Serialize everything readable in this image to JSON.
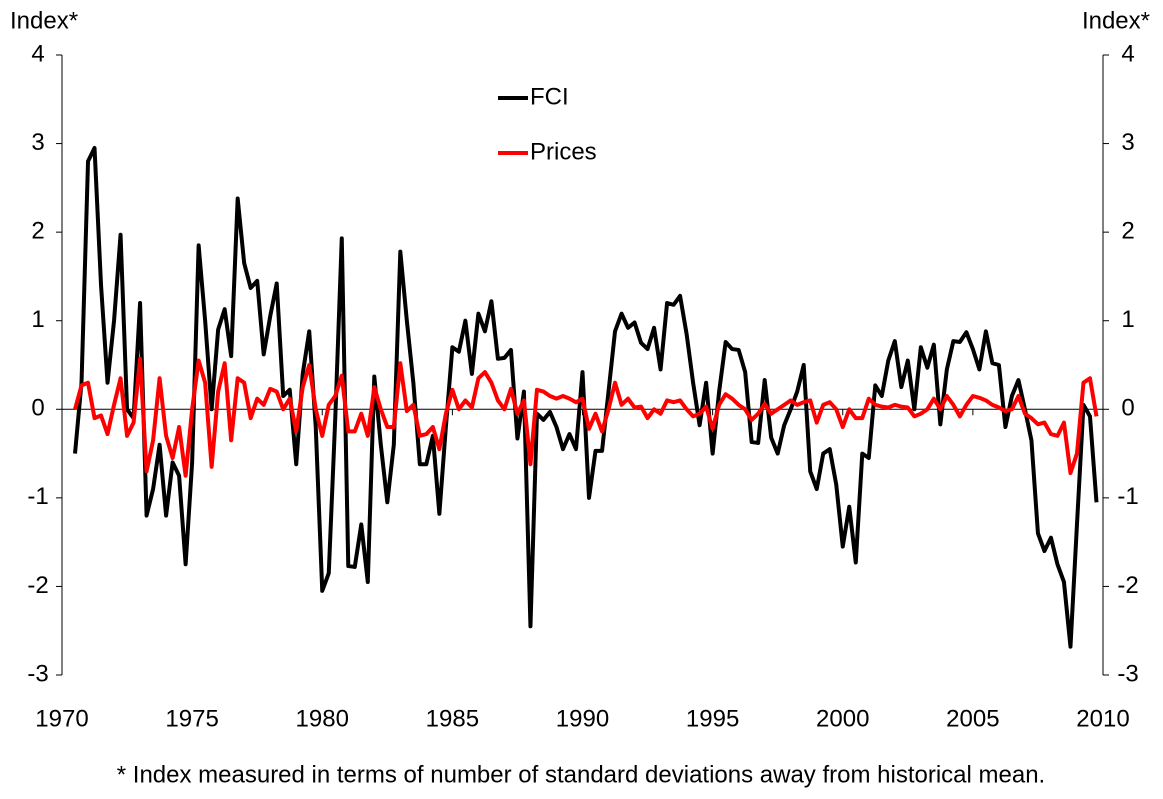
{
  "chart_data": {
    "type": "line",
    "ylabel": "Index*",
    "y2label": "Index*",
    "note": "* Index measured in terms of number of standard deviations away from historical mean.",
    "xlim": [
      1970,
      2010
    ],
    "xticks": [
      1970,
      1975,
      1980,
      1985,
      1990,
      1995,
      2000,
      2005,
      2010
    ],
    "ylim": [
      -3,
      4
    ],
    "yticks": [
      -3,
      -2,
      -1,
      0,
      1,
      2,
      3,
      4
    ],
    "y2lim": [
      -3,
      4
    ],
    "y2ticks": [
      -3,
      -2,
      -1,
      0,
      1,
      2,
      3,
      4
    ],
    "x": [
      1970.5,
      1970.75,
      1971,
      1971.25,
      1971.5,
      1971.75,
      1972,
      1972.25,
      1972.5,
      1972.75,
      1973,
      1973.25,
      1973.5,
      1973.75,
      1974,
      1974.25,
      1974.5,
      1974.75,
      1975,
      1975.25,
      1975.5,
      1975.75,
      1976,
      1976.25,
      1976.5,
      1976.75,
      1977,
      1977.25,
      1977.5,
      1977.75,
      1978,
      1978.25,
      1978.5,
      1978.75,
      1979,
      1979.25,
      1979.5,
      1979.75,
      1980,
      1980.25,
      1980.5,
      1980.75,
      1981,
      1981.25,
      1981.5,
      1981.75,
      1982,
      1982.25,
      1982.5,
      1982.75,
      1983,
      1983.25,
      1983.5,
      1983.75,
      1984,
      1984.25,
      1984.5,
      1984.75,
      1985,
      1985.25,
      1985.5,
      1985.75,
      1986,
      1986.25,
      1986.5,
      1986.75,
      1987,
      1987.25,
      1987.5,
      1987.75,
      1988,
      1988.25,
      1988.5,
      1988.75,
      1989,
      1989.25,
      1989.5,
      1989.75,
      1990,
      1990.25,
      1990.5,
      1990.75,
      1991,
      1991.25,
      1991.5,
      1991.75,
      1992,
      1992.25,
      1992.5,
      1992.75,
      1993,
      1993.25,
      1993.5,
      1993.75,
      1994,
      1994.25,
      1994.5,
      1994.75,
      1995,
      1995.25,
      1995.5,
      1995.75,
      1996,
      1996.25,
      1996.5,
      1996.75,
      1997,
      1997.25,
      1997.5,
      1997.75,
      1998,
      1998.25,
      1998.5,
      1998.75,
      1999,
      1999.25,
      1999.5,
      1999.75,
      2000,
      2000.25,
      2000.5,
      2000.75,
      2001,
      2001.25,
      2001.5,
      2001.75,
      2002,
      2002.25,
      2002.5,
      2002.75,
      2003,
      2003.25,
      2003.5,
      2003.75,
      2004,
      2004.25,
      2004.5,
      2004.75,
      2005,
      2005.25,
      2005.5,
      2005.75,
      2006,
      2006.25,
      2006.5,
      2006.75,
      2007,
      2007.25,
      2007.5,
      2007.75,
      2008,
      2008.25,
      2008.5,
      2008.75,
      2009,
      2009.25,
      2009.5,
      2009.75
    ],
    "series": [
      {
        "name": "FCI",
        "color": "#000000",
        "values": [
          -0.5,
          0.3,
          2.8,
          2.95,
          1.4,
          0.3,
          1.0,
          1.97,
          0.0,
          -0.1,
          1.2,
          -1.2,
          -0.9,
          -0.4,
          -1.2,
          -0.6,
          -0.75,
          -1.75,
          -0.6,
          1.85,
          1.0,
          0.0,
          0.9,
          1.13,
          0.6,
          2.38,
          1.65,
          1.37,
          1.45,
          0.62,
          1.05,
          1.42,
          0.15,
          0.22,
          -0.62,
          0.4,
          0.88,
          -0.2,
          -2.05,
          -1.85,
          -0.1,
          1.93,
          -1.77,
          -1.78,
          -1.3,
          -1.95,
          0.37,
          -0.4,
          -1.05,
          -0.4,
          1.78,
          1.0,
          0.3,
          -0.62,
          -0.62,
          -0.3,
          -1.18,
          -0.2,
          0.7,
          0.65,
          1.0,
          0.4,
          1.08,
          0.88,
          1.22,
          0.57,
          0.58,
          0.67,
          -0.33,
          0.2,
          -2.45,
          -0.05,
          -0.12,
          -0.03,
          -0.2,
          -0.45,
          -0.28,
          -0.45,
          0.42,
          -1.0,
          -0.47,
          -0.47,
          0.2,
          0.88,
          1.08,
          0.92,
          0.98,
          0.75,
          0.68,
          0.92,
          0.45,
          1.2,
          1.18,
          1.28,
          0.85,
          0.3,
          -0.18,
          0.3,
          -0.5,
          0.2,
          0.76,
          0.68,
          0.67,
          0.42,
          -0.37,
          -0.38,
          0.33,
          -0.32,
          -0.5,
          -0.18,
          0.0,
          0.2,
          0.5,
          -0.7,
          -0.9,
          -0.5,
          -0.45,
          -0.85,
          -1.55,
          -1.1,
          -1.73,
          -0.5,
          -0.55,
          0.27,
          0.15,
          0.55,
          0.77,
          0.25,
          0.55,
          0.0,
          0.7,
          0.47,
          0.73,
          -0.17,
          0.45,
          0.77,
          0.76,
          0.87,
          0.68,
          0.45,
          0.88,
          0.52,
          0.5,
          -0.2,
          0.15,
          0.33,
          0.0,
          -0.35,
          -1.4,
          -1.6,
          -1.45,
          -1.75,
          -1.95,
          -2.68,
          -1.3,
          0.05,
          -0.08,
          -1.05
        ]
      },
      {
        "name": "Prices",
        "color": "#ff0000",
        "values": [
          0,
          0.27,
          0.3,
          -0.1,
          -0.07,
          -0.28,
          0.05,
          0.35,
          -0.3,
          -0.15,
          0.57,
          -0.7,
          -0.35,
          0.35,
          -0.3,
          -0.55,
          -0.2,
          -0.75,
          0.0,
          0.55,
          0.3,
          -0.65,
          0.2,
          0.52,
          -0.35,
          0.35,
          0.3,
          -0.1,
          0.12,
          0.05,
          0.23,
          0.2,
          0.0,
          0.12,
          -0.25,
          0.25,
          0.5,
          0.0,
          -0.3,
          0.05,
          0.15,
          0.38,
          -0.25,
          -0.25,
          -0.05,
          -0.3,
          0.25,
          0.0,
          -0.2,
          -0.2,
          0.52,
          -0.02,
          0.05,
          -0.3,
          -0.28,
          -0.2,
          -0.45,
          -0.05,
          0.22,
          0.0,
          0.1,
          0.02,
          0.35,
          0.42,
          0.3,
          0.1,
          0.0,
          0.23,
          -0.05,
          0.1,
          -0.62,
          0.22,
          0.2,
          0.15,
          0.12,
          0.15,
          0.12,
          0.08,
          0.12,
          -0.22,
          -0.05,
          -0.25,
          0.0,
          0.3,
          0.05,
          0.12,
          0.02,
          0.03,
          -0.1,
          0.0,
          -0.05,
          0.1,
          0.08,
          0.1,
          0.0,
          -0.08,
          -0.05,
          0.03,
          -0.22,
          0.05,
          0.17,
          0.12,
          0.05,
          0.0,
          -0.12,
          -0.05,
          0.06,
          -0.05,
          0.0,
          0.05,
          0.1,
          0.05,
          0.08,
          0.1,
          -0.15,
          0.05,
          0.08,
          0.0,
          -0.2,
          0.0,
          -0.1,
          -0.1,
          0.12,
          0.05,
          0.03,
          0.02,
          0.05,
          0.03,
          0.02,
          -0.08,
          -0.05,
          0.0,
          0.12,
          0.0,
          0.15,
          0.05,
          -0.08,
          0.05,
          0.15,
          0.13,
          0.1,
          0.05,
          0.02,
          -0.02,
          0.0,
          0.15,
          -0.05,
          -0.1,
          -0.17,
          -0.15,
          -0.28,
          -0.3,
          -0.15,
          -0.72,
          -0.5,
          0.3,
          0.35,
          -0.08
        ]
      }
    ]
  }
}
